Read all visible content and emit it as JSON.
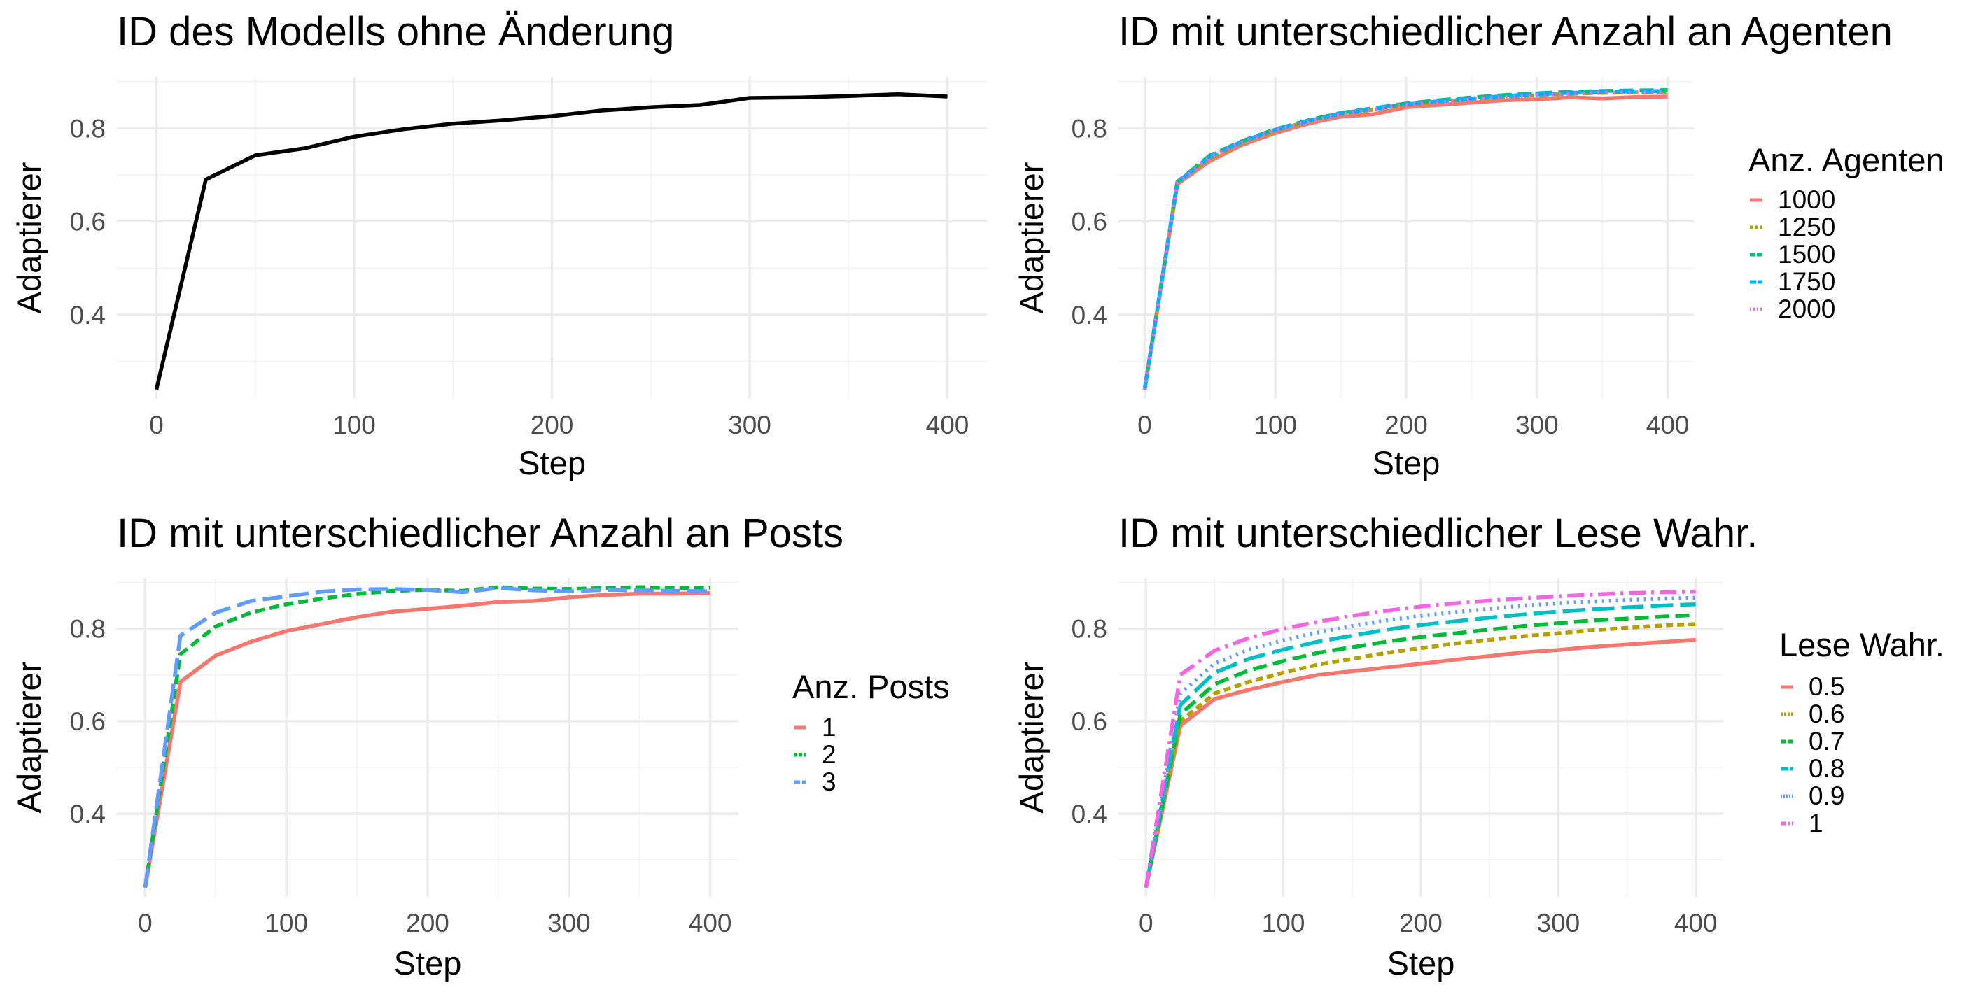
{
  "chart_data": [
    {
      "type": "line",
      "title": "ID des Modells ohne Änderung",
      "xlabel": "Step",
      "ylabel": "Adaptierer",
      "xlim": [
        -20,
        420
      ],
      "ylim": [
        0.22,
        0.91
      ],
      "xticks": [
        0,
        100,
        200,
        300,
        400
      ],
      "yticks": [
        0.4,
        0.6,
        0.8
      ],
      "xtick_labels": [
        "0",
        "100",
        "200",
        "300",
        "400"
      ],
      "ytick_labels": [
        "0.4",
        "0.6",
        "0.8"
      ],
      "grid": true,
      "legend": null,
      "x": [
        0,
        25,
        50,
        75,
        100,
        125,
        150,
        175,
        200,
        225,
        250,
        275,
        300,
        325,
        350,
        375,
        400
      ],
      "series": [
        {
          "color": "#000000",
          "dash": "",
          "values": [
            0.24,
            0.69,
            0.742,
            0.757,
            0.782,
            0.798,
            0.81,
            0.817,
            0.826,
            0.838,
            0.845,
            0.85,
            0.865,
            0.866,
            0.869,
            0.873,
            0.868
          ]
        }
      ]
    },
    {
      "type": "line",
      "title": "ID mit unterschiedlicher Anzahl an Agenten",
      "xlabel": "Step",
      "ylabel": "Adaptierer",
      "xlim": [
        -20,
        420
      ],
      "ylim": [
        0.22,
        0.91
      ],
      "xticks": [
        0,
        100,
        200,
        300,
        400
      ],
      "yticks": [
        0.4,
        0.6,
        0.8
      ],
      "xtick_labels": [
        "0",
        "100",
        "200",
        "300",
        "400"
      ],
      "ytick_labels": [
        "0.4",
        "0.6",
        "0.8"
      ],
      "grid": true,
      "legend": {
        "title": "Anz. Agenten",
        "position": "right"
      },
      "x": [
        0,
        25,
        50,
        75,
        100,
        125,
        150,
        175,
        200,
        225,
        250,
        275,
        300,
        325,
        350,
        375,
        400
      ],
      "series": [
        {
          "name": "1000",
          "color": "#F8766D",
          "dash": "",
          "values": [
            0.24,
            0.68,
            0.73,
            0.765,
            0.79,
            0.81,
            0.825,
            0.83,
            0.845,
            0.85,
            0.855,
            0.86,
            0.862,
            0.866,
            0.864,
            0.867,
            0.868
          ]
        },
        {
          "name": "1250",
          "color": "#A3A500",
          "dash": "14 7",
          "values": [
            0.24,
            0.683,
            0.736,
            0.77,
            0.795,
            0.815,
            0.83,
            0.84,
            0.85,
            0.857,
            0.862,
            0.867,
            0.871,
            0.874,
            0.876,
            0.877,
            0.878
          ]
        },
        {
          "name": "1500",
          "color": "#00BF7D",
          "dash": "20 9",
          "values": [
            0.24,
            0.685,
            0.742,
            0.773,
            0.798,
            0.817,
            0.833,
            0.843,
            0.853,
            0.86,
            0.866,
            0.871,
            0.875,
            0.878,
            0.88,
            0.881,
            0.882
          ]
        },
        {
          "name": "1750",
          "color": "#00B0F6",
          "dash": "28 10",
          "values": [
            0.24,
            0.684,
            0.74,
            0.772,
            0.797,
            0.816,
            0.832,
            0.842,
            0.851,
            0.858,
            0.864,
            0.869,
            0.873,
            0.876,
            0.878,
            0.879,
            0.88
          ]
        },
        {
          "name": "2000",
          "color": "#E76BF3",
          "dash": "3 8",
          "values": [
            0.24,
            0.682,
            0.738,
            0.771,
            0.796,
            0.814,
            0.83,
            0.84,
            0.85,
            0.856,
            0.862,
            0.867,
            0.871,
            0.874,
            0.876,
            0.877,
            0.878
          ]
        }
      ]
    },
    {
      "type": "line",
      "title": "ID mit unterschiedlicher Anzahl an Posts",
      "xlabel": "Step",
      "ylabel": "Adaptierer",
      "xlim": [
        -20,
        420
      ],
      "ylim": [
        0.22,
        0.91
      ],
      "xticks": [
        0,
        100,
        200,
        300,
        400
      ],
      "yticks": [
        0.4,
        0.6,
        0.8
      ],
      "xtick_labels": [
        "0",
        "100",
        "200",
        "300",
        "400"
      ],
      "ytick_labels": [
        "0.4",
        "0.6",
        "0.8"
      ],
      "grid": true,
      "legend": {
        "title": "Anz. Posts",
        "position": "right"
      },
      "x": [
        0,
        25,
        50,
        75,
        100,
        125,
        150,
        175,
        200,
        225,
        250,
        275,
        300,
        325,
        350,
        375,
        400
      ],
      "series": [
        {
          "name": "1",
          "color": "#F8766D",
          "dash": "",
          "values": [
            0.24,
            0.685,
            0.742,
            0.772,
            0.795,
            0.81,
            0.825,
            0.837,
            0.843,
            0.85,
            0.858,
            0.86,
            0.868,
            0.873,
            0.876,
            0.876,
            0.877
          ]
        },
        {
          "name": "2",
          "color": "#00BA38",
          "dash": "14 7",
          "values": [
            0.24,
            0.745,
            0.805,
            0.835,
            0.853,
            0.865,
            0.875,
            0.882,
            0.884,
            0.882,
            0.89,
            0.887,
            0.886,
            0.888,
            0.89,
            0.888,
            0.889
          ]
        },
        {
          "name": "3",
          "color": "#619CFF",
          "dash": "28 10",
          "values": [
            0.24,
            0.785,
            0.835,
            0.86,
            0.87,
            0.88,
            0.885,
            0.886,
            0.884,
            0.879,
            0.888,
            0.883,
            0.881,
            0.884,
            0.883,
            0.882,
            0.881
          ]
        }
      ]
    },
    {
      "type": "line",
      "title": "ID mit unterschiedlicher Lese Wahr.",
      "xlabel": "Step",
      "ylabel": "Adaptierer",
      "xlim": [
        -20,
        420
      ],
      "ylim": [
        0.22,
        0.91
      ],
      "xticks": [
        0,
        100,
        200,
        300,
        400
      ],
      "yticks": [
        0.4,
        0.6,
        0.8
      ],
      "xtick_labels": [
        "0",
        "100",
        "200",
        "300",
        "400"
      ],
      "ytick_labels": [
        "0.4",
        "0.6",
        "0.8"
      ],
      "grid": true,
      "legend": {
        "title": "Lese Wahr.",
        "position": "right"
      },
      "x": [
        0,
        25,
        50,
        75,
        100,
        125,
        150,
        175,
        200,
        225,
        250,
        275,
        300,
        325,
        350,
        375,
        400
      ],
      "series": [
        {
          "name": "0.5",
          "color": "#F8766D",
          "dash": "",
          "values": [
            0.24,
            0.59,
            0.648,
            0.668,
            0.685,
            0.7,
            0.708,
            0.716,
            0.724,
            0.733,
            0.741,
            0.749,
            0.754,
            0.761,
            0.766,
            0.771,
            0.776
          ]
        },
        {
          "name": "0.6",
          "color": "#B79F00",
          "dash": "10 6",
          "values": [
            0.24,
            0.6,
            0.66,
            0.685,
            0.705,
            0.722,
            0.735,
            0.748,
            0.758,
            0.768,
            0.776,
            0.784,
            0.79,
            0.797,
            0.802,
            0.807,
            0.81
          ]
        },
        {
          "name": "0.7",
          "color": "#00BA38",
          "dash": "20 9",
          "values": [
            0.24,
            0.615,
            0.68,
            0.71,
            0.73,
            0.748,
            0.76,
            0.772,
            0.782,
            0.79,
            0.798,
            0.806,
            0.812,
            0.818,
            0.822,
            0.826,
            0.83
          ]
        },
        {
          "name": "0.8",
          "color": "#00BFC4",
          "dash": "32 10",
          "values": [
            0.24,
            0.635,
            0.705,
            0.735,
            0.755,
            0.772,
            0.785,
            0.798,
            0.808,
            0.816,
            0.824,
            0.831,
            0.837,
            0.842,
            0.846,
            0.85,
            0.853
          ]
        },
        {
          "name": "0.9",
          "color": "#619CFF",
          "dash": "3 7",
          "values": [
            0.24,
            0.66,
            0.725,
            0.755,
            0.775,
            0.792,
            0.806,
            0.818,
            0.828,
            0.836,
            0.843,
            0.85,
            0.855,
            0.859,
            0.862,
            0.865,
            0.867
          ]
        },
        {
          "name": "1",
          "color": "#F564E3",
          "dash": "24 8 4 8",
          "values": [
            0.24,
            0.7,
            0.753,
            0.78,
            0.8,
            0.815,
            0.828,
            0.839,
            0.848,
            0.855,
            0.861,
            0.866,
            0.87,
            0.874,
            0.877,
            0.879,
            0.88
          ]
        }
      ]
    }
  ]
}
